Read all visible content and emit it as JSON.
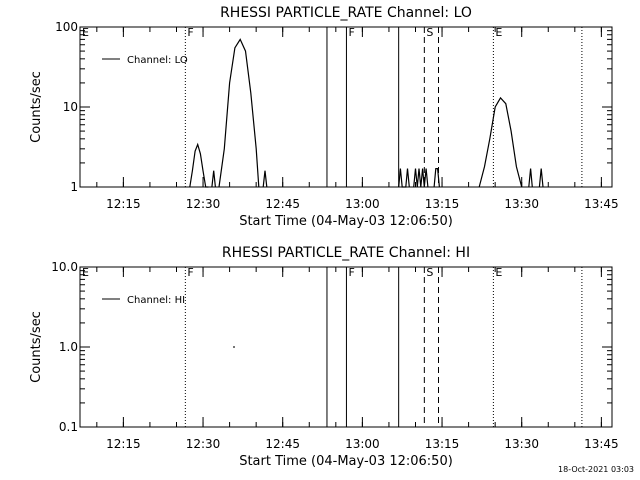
{
  "timestamp": "18-Oct-2021 03:03",
  "chart_data": [
    {
      "type": "line",
      "title": "RHESSI PARTICLE_RATE Channel: LO",
      "xlabel": "Start Time (04-May-03 12:06:50)",
      "ylabel": "Counts/sec",
      "yscale": "log",
      "ylim": [
        1,
        100
      ],
      "yticks": [
        {
          "v": 1,
          "label": "1"
        },
        {
          "v": 10,
          "label": "10"
        },
        {
          "v": 100,
          "label": "100"
        }
      ],
      "xlim": [
        "12:06:50",
        "13:47:00"
      ],
      "xticks": [
        "12:15",
        "12:30",
        "12:45",
        "13:00",
        "13:15",
        "13:30",
        "13:45"
      ],
      "legend": "top-left",
      "series": [
        {
          "name": "Channel: LO",
          "segments": [
            {
              "x": [
                "12:27:30",
                "12:28:00",
                "12:28:30",
                "12:29:00",
                "12:29:30",
                "12:30:00",
                "12:30:30",
                "12:31:00"
              ],
              "y": [
                1.0,
                1.6,
                2.8,
                3.4,
                2.6,
                1.6,
                1.0,
                1.0
              ]
            },
            {
              "x": [
                "12:31:40",
                "12:32:00",
                "12:32:20"
              ],
              "y": [
                1.0,
                1.6,
                1.0
              ]
            },
            {
              "x": [
                "12:33:00",
                "12:34:00",
                "12:35:00",
                "12:36:00",
                "12:37:00",
                "12:38:00",
                "12:39:00",
                "12:40:00",
                "12:40:30"
              ],
              "y": [
                1.0,
                3.0,
                20.0,
                55.0,
                70.0,
                50.0,
                15.0,
                3.0,
                1.0
              ]
            },
            {
              "x": [
                "12:41:20",
                "12:41:40",
                "12:42:00"
              ],
              "y": [
                1.0,
                1.6,
                1.0
              ]
            },
            {
              "x": [
                "13:06:50",
                "13:07:10",
                "13:07:30",
                "13:08:10",
                "13:08:30",
                "13:08:50"
              ],
              "y": [
                1.0,
                1.7,
                1.0,
                1.0,
                1.7,
                1.0
              ]
            },
            {
              "x": [
                "13:09:40",
                "13:10:00",
                "13:10:20",
                "13:10:40",
                "13:11:00",
                "13:11:20",
                "13:11:40",
                "13:12:00",
                "13:12:20"
              ],
              "y": [
                1.0,
                1.7,
                1.0,
                1.7,
                1.0,
                1.7,
                1.0,
                1.7,
                1.0
              ]
            },
            {
              "x": [
                "13:13:30",
                "13:13:50",
                "13:14:10",
                "13:14:30"
              ],
              "y": [
                1.0,
                1.7,
                1.7,
                1.0
              ]
            },
            {
              "x": [
                "13:22:00",
                "13:23:00",
                "13:24:00",
                "13:25:00",
                "13:26:00",
                "13:27:00",
                "13:28:00",
                "13:29:00",
                "13:30:00"
              ],
              "y": [
                1.0,
                1.8,
                4.0,
                10.0,
                13.0,
                11.0,
                5.0,
                1.8,
                1.0
              ]
            },
            {
              "x": [
                "13:31:20",
                "13:31:40",
                "13:32:00"
              ],
              "y": [
                1.0,
                1.7,
                1.0
              ]
            },
            {
              "x": [
                "13:33:20",
                "13:33:40",
                "13:34:00"
              ],
              "y": [
                1.0,
                1.7,
                1.0
              ]
            }
          ]
        }
      ],
      "flags": [
        {
          "x": "12:06:50",
          "label": "E"
        },
        {
          "x": "12:26:40",
          "label": "F"
        },
        {
          "x": "12:53:20",
          "label": ""
        },
        {
          "x": "12:57:00",
          "label": "F"
        },
        {
          "x": "13:06:50",
          "label": ""
        },
        {
          "x": "13:11:40",
          "label": "S"
        },
        {
          "x": "13:14:20",
          "label": ""
        },
        {
          "x": "13:24:40",
          "label": "E"
        },
        {
          "x": "13:41:20",
          "label": ""
        }
      ]
    },
    {
      "type": "line",
      "title": "RHESSI PARTICLE_RATE Channel: HI",
      "xlabel": "Start Time (04-May-03 12:06:50)",
      "ylabel": "Counts/sec",
      "yscale": "log",
      "ylim": [
        0.1,
        10
      ],
      "yticks": [
        {
          "v": 0.1,
          "label": "0.1"
        },
        {
          "v": 1,
          "label": "1.0"
        },
        {
          "v": 10,
          "label": "10.0"
        }
      ],
      "xlim": [
        "12:06:50",
        "13:47:00"
      ],
      "xticks": [
        "12:15",
        "12:30",
        "12:45",
        "13:00",
        "13:15",
        "13:30",
        "13:45"
      ],
      "legend": "top-left",
      "series": [
        {
          "name": "Channel: HI",
          "segments": [
            {
              "x": [
                "12:35:40",
                "12:36:00"
              ],
              "y": [
                1.0,
                1.0
              ]
            }
          ]
        }
      ],
      "flags": [
        {
          "x": "12:06:50",
          "label": "E"
        },
        {
          "x": "12:26:40",
          "label": "F"
        },
        {
          "x": "12:53:20",
          "label": ""
        },
        {
          "x": "12:57:00",
          "label": "F"
        },
        {
          "x": "13:06:50",
          "label": ""
        },
        {
          "x": "13:11:40",
          "label": "S"
        },
        {
          "x": "13:14:20",
          "label": ""
        },
        {
          "x": "13:24:40",
          "label": "E"
        },
        {
          "x": "13:41:20",
          "label": ""
        }
      ]
    }
  ]
}
